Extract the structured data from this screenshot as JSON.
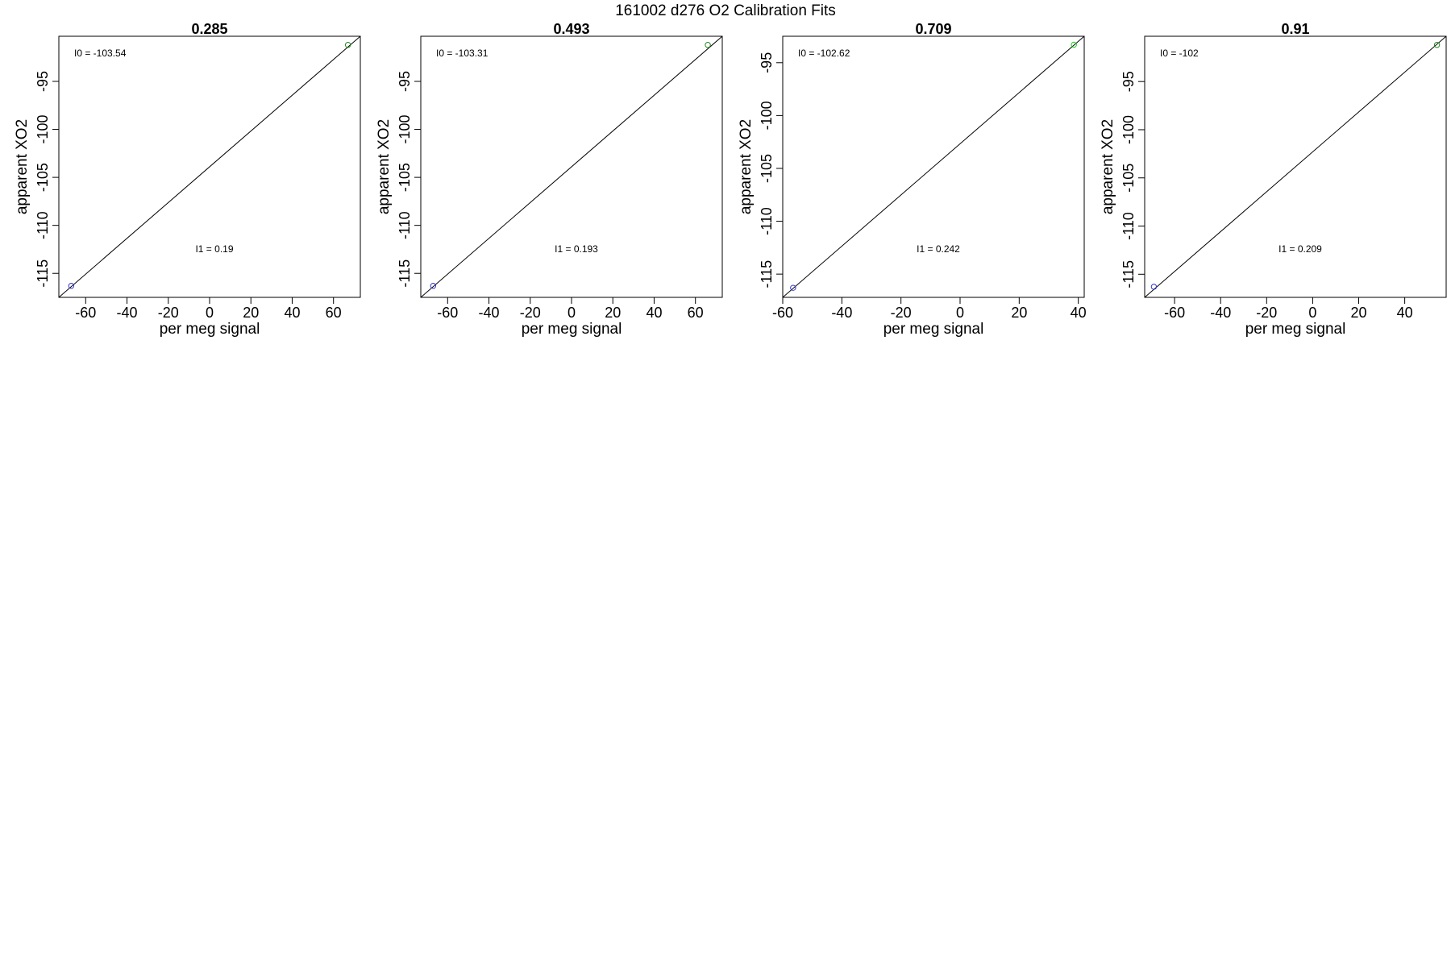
{
  "figure": {
    "title": "161002   d276   O2 Calibration Fits"
  },
  "chart_data": [
    {
      "type": "scatter",
      "title": "0.285",
      "xlabel": "per meg signal",
      "ylabel": "apparent XO2",
      "xlim": [
        -73,
        73
      ],
      "ylim": [
        -117.5,
        -90.3
      ],
      "xticks": [
        -60,
        -40,
        -20,
        0,
        20,
        40,
        60
      ],
      "yticks": [
        -95,
        -100,
        -105,
        -110,
        -115
      ],
      "grid": false,
      "points": [
        {
          "x": -67,
          "y": -116.3,
          "color": "#3333cc"
        },
        {
          "x": 67,
          "y": -91.2,
          "color": "#228822"
        }
      ],
      "fit_line": {
        "x1": -73,
        "y1": -117.5,
        "x2": 73,
        "y2": -90.3
      },
      "annotations": {
        "intercept": "I0 =  -103.54",
        "slope": "I1 =  0.19"
      }
    },
    {
      "type": "scatter",
      "title": "0.493",
      "xlabel": "per meg signal",
      "ylabel": "apparent XO2",
      "xlim": [
        -73,
        73
      ],
      "ylim": [
        -117.5,
        -90.3
      ],
      "xticks": [
        -60,
        -40,
        -20,
        0,
        20,
        40,
        60
      ],
      "yticks": [
        -95,
        -100,
        -105,
        -110,
        -115
      ],
      "grid": false,
      "points": [
        {
          "x": -67,
          "y": -116.3,
          "color": "#3333cc"
        },
        {
          "x": 66,
          "y": -91.2,
          "color": "#228822"
        }
      ],
      "fit_line": {
        "x1": -73,
        "y1": -117.5,
        "x2": 73,
        "y2": -90.3
      },
      "annotations": {
        "intercept": "I0 =  -103.31",
        "slope": "I1 =  0.193"
      }
    },
    {
      "type": "scatter",
      "title": "0.709",
      "xlabel": "per meg signal",
      "ylabel": "apparent XO2",
      "xlim": [
        -60,
        42
      ],
      "ylim": [
        -117.2,
        -92.5
      ],
      "xticks": [
        -60,
        -40,
        -20,
        0,
        20,
        40
      ],
      "yticks": [
        -95,
        -100,
        -105,
        -110,
        -115
      ],
      "grid": false,
      "points": [
        {
          "x": -56.5,
          "y": -116.3,
          "color": "#3333cc"
        },
        {
          "x": 38.5,
          "y": -93.3,
          "color": "#22cc22"
        }
      ],
      "fit_line": {
        "x1": -60,
        "y1": -117.2,
        "x2": 42,
        "y2": -92.5
      },
      "annotations": {
        "intercept": "I0 =  -102.62",
        "slope": "I1 =  0.242"
      }
    },
    {
      "type": "scatter",
      "title": "0.91",
      "xlabel": "per meg signal",
      "ylabel": "apparent XO2",
      "xlim": [
        -73,
        58
      ],
      "ylim": [
        -117.4,
        -90.3
      ],
      "xticks": [
        -60,
        -40,
        -20,
        0,
        20,
        40
      ],
      "yticks": [
        -95,
        -100,
        -105,
        -110,
        -115
      ],
      "grid": false,
      "points": [
        {
          "x": -69,
          "y": -116.3,
          "color": "#3333cc"
        },
        {
          "x": 54,
          "y": -91.2,
          "color": "#228822"
        }
      ],
      "fit_line": {
        "x1": -73,
        "y1": -117.4,
        "x2": 58,
        "y2": -90.3
      },
      "annotations": {
        "intercept": "I0 =  -102",
        "slope": "I1 =  0.209"
      }
    }
  ]
}
